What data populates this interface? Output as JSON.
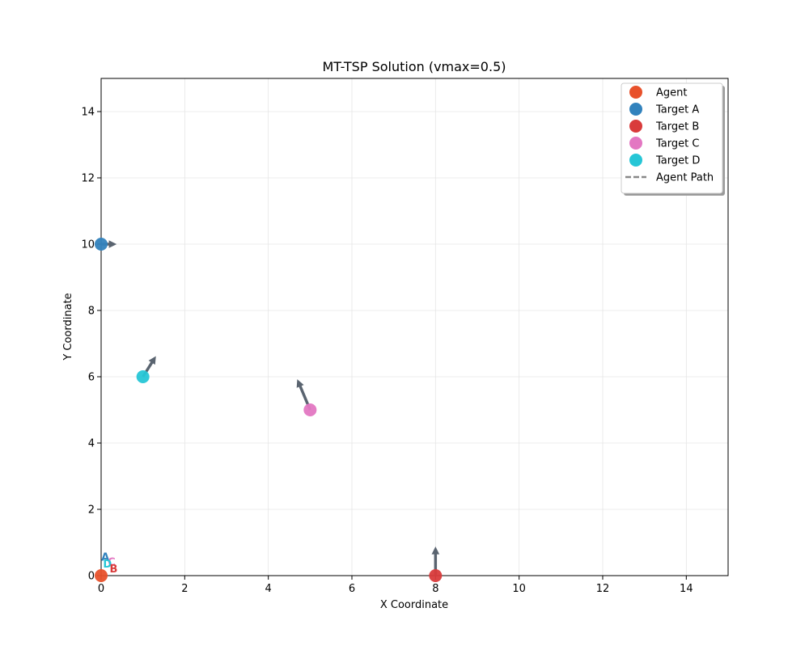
{
  "chart_data": {
    "type": "scatter",
    "title": "MT-TSP Solution (vmax=0.5)",
    "xlabel": "X Coordinate",
    "ylabel": "Y Coordinate",
    "xlim": [
      0,
      15
    ],
    "ylim": [
      0,
      15
    ],
    "xticks": [
      0,
      2,
      4,
      6,
      8,
      10,
      12,
      14
    ],
    "yticks": [
      0,
      2,
      4,
      6,
      8,
      10,
      12,
      14
    ],
    "grid": true,
    "legend_position": "top-right",
    "series": [
      {
        "name": "Agent",
        "color": "#e8512b",
        "points": [
          {
            "x": 0,
            "y": 0
          }
        ]
      },
      {
        "name": "Target A",
        "color": "#3182bd",
        "points": [
          {
            "x": 0,
            "y": 10
          }
        ],
        "velocity": {
          "dx": 0.35,
          "dy": 0.0
        }
      },
      {
        "name": "Target B",
        "color": "#d93b3b",
        "points": [
          {
            "x": 8,
            "y": 0
          }
        ],
        "velocity": {
          "dx": 0.0,
          "dy": 0.85
        }
      },
      {
        "name": "Target C",
        "color": "#e377c2",
        "points": [
          {
            "x": 5,
            "y": 5
          }
        ],
        "velocity": {
          "dx": -0.3,
          "dy": 0.9
        }
      },
      {
        "name": "Target D",
        "color": "#26c6d6",
        "points": [
          {
            "x": 1,
            "y": 6
          }
        ],
        "velocity": {
          "dx": 0.3,
          "dy": 0.6
        }
      }
    ],
    "agent_path": {
      "name": "Agent Path",
      "color": "#888888",
      "style": "dashed",
      "points": []
    },
    "annotations": [
      {
        "text": "A",
        "x": 0.1,
        "y": 0.45,
        "color": "#3182bd"
      },
      {
        "text": "C",
        "x": 0.25,
        "y": 0.3,
        "color": "#e377c2"
      },
      {
        "text": "D",
        "x": 0.15,
        "y": 0.25,
        "color": "#26c6d6"
      },
      {
        "text": "B",
        "x": 0.3,
        "y": 0.1,
        "color": "#d93b3b"
      }
    ]
  }
}
